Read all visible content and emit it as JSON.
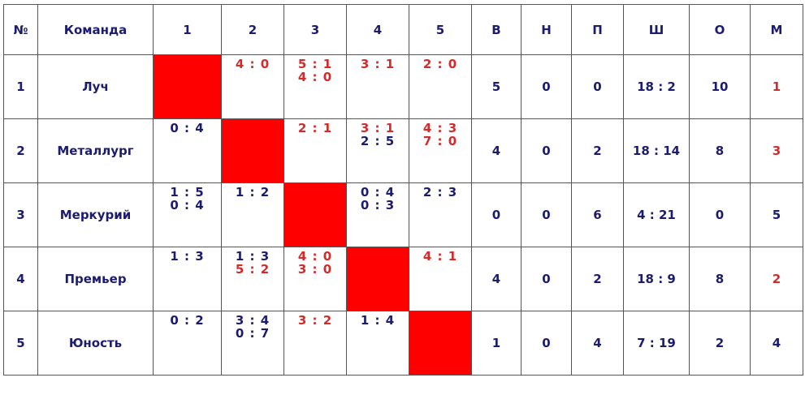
{
  "table": {
    "header": [
      "№",
      "Команда",
      "1",
      "2",
      "3",
      "4",
      "5",
      "В",
      "Н",
      "П",
      "Ш",
      "О",
      "М"
    ],
    "rows": [
      {
        "no": 1,
        "team": "Луч",
        "results": [
          null,
          [
            {
              "score": "4 : 0",
              "color": "#d42a2a"
            }
          ],
          [
            {
              "score": "5 : 1",
              "color": "#d42a2a"
            },
            {
              "score": "4 : 0",
              "color": "#d42a2a"
            }
          ],
          [
            {
              "score": "3 : 1",
              "color": "#d42a2a"
            }
          ],
          [
            {
              "score": "2 : 0",
              "color": "#d42a2a"
            }
          ]
        ],
        "w": 5,
        "d": 0,
        "l": 0,
        "goals": "18 : 2",
        "points": 10,
        "place": 1,
        "place_color": "#d42a2a"
      },
      {
        "no": 2,
        "team": "Металлург",
        "results": [
          [
            {
              "score": "0 : 4",
              "color": "#1c1c6e"
            }
          ],
          null,
          [
            {
              "score": "2 : 1",
              "color": "#d42a2a"
            }
          ],
          [
            {
              "score": "3 : 1",
              "color": "#d42a2a"
            },
            {
              "score": "2 : 5",
              "color": "#1c1c6e"
            }
          ],
          [
            {
              "score": "4 : 3",
              "color": "#d42a2a"
            },
            {
              "score": "7 : 0",
              "color": "#d42a2a"
            }
          ]
        ],
        "w": 4,
        "d": 0,
        "l": 2,
        "goals": "18 : 14",
        "points": 8,
        "place": 3,
        "place_color": "#d42a2a"
      },
      {
        "no": 3,
        "team": "Меркурий",
        "results": [
          [
            {
              "score": "1 : 5",
              "color": "#1c1c6e"
            },
            {
              "score": "0 : 4",
              "color": "#1c1c6e"
            }
          ],
          [
            {
              "score": "1 : 2",
              "color": "#1c1c6e"
            }
          ],
          null,
          [
            {
              "score": "0 : 4",
              "color": "#1c1c6e"
            },
            {
              "score": "0 : 3",
              "color": "#1c1c6e"
            }
          ],
          [
            {
              "score": "2 : 3",
              "color": "#1c1c6e"
            }
          ]
        ],
        "w": 0,
        "d": 0,
        "l": 6,
        "goals": "4 : 21",
        "points": 0,
        "place": 5,
        "place_color": "#1c1c6e"
      },
      {
        "no": 4,
        "team": "Премьер",
        "results": [
          [
            {
              "score": "1 : 3",
              "color": "#1c1c6e"
            }
          ],
          [
            {
              "score": "1 : 3",
              "color": "#1c1c6e"
            },
            {
              "score": "5 : 2",
              "color": "#d42a2a"
            }
          ],
          [
            {
              "score": "4 : 0",
              "color": "#d42a2a"
            },
            {
              "score": "3 : 0",
              "color": "#d42a2a"
            }
          ],
          null,
          [
            {
              "score": "4 : 1",
              "color": "#d42a2a"
            }
          ]
        ],
        "w": 4,
        "d": 0,
        "l": 2,
        "goals": "18 : 9",
        "points": 8,
        "place": 2,
        "place_color": "#d42a2a"
      },
      {
        "no": 5,
        "team": "Юность",
        "results": [
          [
            {
              "score": "0 : 2",
              "color": "#1c1c6e"
            }
          ],
          [
            {
              "score": "3 : 4",
              "color": "#1c1c6e"
            },
            {
              "score": "0 : 7",
              "color": "#1c1c6e"
            }
          ],
          [
            {
              "score": "3 : 2",
              "color": "#d42a2a"
            }
          ],
          [
            {
              "score": "1 : 4",
              "color": "#1c1c6e"
            }
          ],
          null
        ],
        "w": 1,
        "d": 0,
        "l": 4,
        "goals": "7 : 19",
        "points": 2,
        "place": 4,
        "place_color": "#1c1c6e"
      }
    ],
    "diagonal_color": "#ff0000",
    "text_color": "#1c1c6e"
  }
}
